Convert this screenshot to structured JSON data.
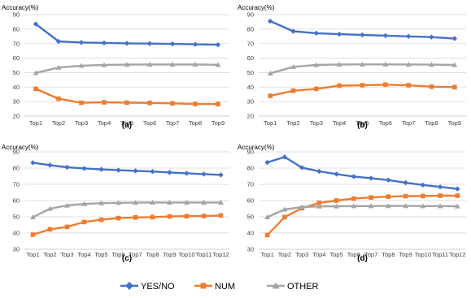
{
  "chart_data": [
    {
      "type": "line",
      "panel": "(a)",
      "ylabel": "Accuracy(%)",
      "ylim": [
        20,
        90
      ],
      "yticks": [
        20,
        30,
        40,
        50,
        60,
        70,
        80,
        90
      ],
      "categories": [
        "Top1",
        "Top2",
        "Top3",
        "Top4",
        "Top5",
        "Top6",
        "Top7",
        "Top8",
        "Top9"
      ],
      "grid": true,
      "series": [
        {
          "name": "YES/NO",
          "values": [
            83.5,
            71.5,
            70.8,
            70.5,
            70.2,
            70.0,
            69.8,
            69.5,
            69.2
          ]
        },
        {
          "name": "NUM",
          "values": [
            38.8,
            32.0,
            29.2,
            29.5,
            29.3,
            29.1,
            28.8,
            28.4,
            28.3
          ]
        },
        {
          "name": "OTHER",
          "values": [
            49.8,
            53.5,
            54.8,
            55.3,
            55.5,
            55.6,
            55.6,
            55.6,
            55.4
          ]
        }
      ]
    },
    {
      "type": "line",
      "panel": "(b)",
      "ylabel": "Accuracy(%)",
      "ylim": [
        20,
        90
      ],
      "yticks": [
        20,
        30,
        40,
        50,
        60,
        70,
        80,
        90
      ],
      "categories": [
        "Top1",
        "Top2",
        "Top3",
        "Top4",
        "Top5",
        "Top6",
        "Top7",
        "Top8",
        "Top9"
      ],
      "grid": true,
      "series": [
        {
          "name": "YES/NO",
          "values": [
            85.5,
            78.5,
            77.2,
            76.5,
            76.0,
            75.5,
            75.0,
            74.5,
            73.5
          ]
        },
        {
          "name": "NUM",
          "values": [
            34.0,
            37.5,
            38.8,
            41.0,
            41.3,
            41.7,
            41.3,
            40.3,
            40.0
          ]
        },
        {
          "name": "OTHER",
          "values": [
            49.5,
            54.0,
            55.3,
            55.6,
            55.7,
            55.7,
            55.6,
            55.5,
            55.3
          ]
        }
      ]
    },
    {
      "type": "line",
      "panel": "(c)",
      "ylabel": "Accuracy(%)",
      "ylim": [
        30,
        90
      ],
      "yticks": [
        30,
        40,
        50,
        60,
        70,
        80,
        90
      ],
      "categories": [
        "Top1",
        "Top2",
        "Top3",
        "Top4",
        "Top5",
        "Top6",
        "Top7",
        "Top8",
        "Top9",
        "Top10",
        "Top11",
        "Top12"
      ],
      "grid": true,
      "series": [
        {
          "name": "YES/NO",
          "values": [
            83.3,
            81.8,
            80.5,
            79.8,
            79.2,
            78.7,
            78.3,
            77.9,
            77.3,
            76.8,
            76.3,
            75.8
          ]
        },
        {
          "name": "NUM",
          "values": [
            39.0,
            42.3,
            43.8,
            46.8,
            48.2,
            49.2,
            49.6,
            49.8,
            50.2,
            50.4,
            50.5,
            50.8
          ]
        },
        {
          "name": "OTHER",
          "values": [
            49.8,
            55.0,
            57.0,
            57.9,
            58.4,
            58.6,
            58.7,
            58.8,
            58.8,
            58.8,
            58.8,
            58.8
          ]
        }
      ]
    },
    {
      "type": "line",
      "panel": "(d)",
      "ylabel": "Accuracy(%)",
      "ylim": [
        30,
        90
      ],
      "yticks": [
        30,
        40,
        50,
        60,
        70,
        80,
        90
      ],
      "categories": [
        "Top1",
        "Top2",
        "Top3",
        "Top4",
        "Top5",
        "Top6",
        "Top7",
        "Top8",
        "Top9",
        "Top10",
        "Top11",
        "Top12"
      ],
      "grid": true,
      "series": [
        {
          "name": "YES/NO",
          "values": [
            83.5,
            86.8,
            80.3,
            78.0,
            76.3,
            74.8,
            73.8,
            72.6,
            71.0,
            69.6,
            68.4,
            67.2
          ]
        },
        {
          "name": "NUM",
          "values": [
            38.8,
            49.8,
            55.3,
            58.6,
            60.0,
            61.2,
            61.9,
            62.4,
            62.7,
            62.8,
            63.0,
            63.0
          ]
        },
        {
          "name": "OTHER",
          "values": [
            49.8,
            54.5,
            56.0,
            56.4,
            56.5,
            56.6,
            56.6,
            56.7,
            56.7,
            56.6,
            56.6,
            56.5
          ]
        }
      ]
    }
  ],
  "legend": {
    "placement": "bottom",
    "items": [
      {
        "label": "YES/NO",
        "color": "#4472C4",
        "marker": "diamond"
      },
      {
        "label": "NUM",
        "color": "#ED7D31",
        "marker": "square"
      },
      {
        "label": "OTHER",
        "color": "#A5A5A5",
        "marker": "triangle"
      }
    ]
  },
  "colors": {
    "YES/NO": "#4472C4",
    "NUM": "#ED7D31",
    "OTHER": "#A5A5A5"
  }
}
